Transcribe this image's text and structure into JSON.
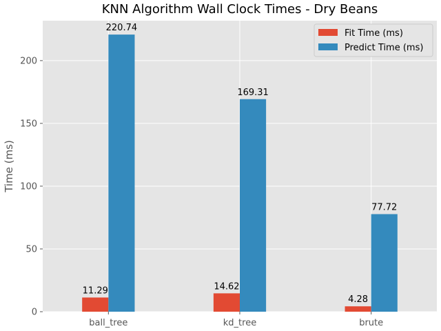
{
  "chart_data": {
    "type": "bar",
    "title": "KNN Algorithm Wall Clock Times - Dry Beans",
    "xlabel": "",
    "ylabel": "Time (ms)",
    "categories": [
      "ball_tree",
      "kd_tree",
      "brute"
    ],
    "series": [
      {
        "name": "Fit Time (ms)",
        "values": [
          11.29,
          14.62,
          4.28
        ],
        "labels": [
          "11.29",
          "14.62",
          "4.28"
        ],
        "color": "#E24A33"
      },
      {
        "name": "Predict Time (ms)",
        "values": [
          220.74,
          169.31,
          77.72
        ],
        "labels": [
          "220.74",
          "169.31",
          "77.72"
        ],
        "color": "#348ABD"
      }
    ],
    "ylim": [
      0,
      231.8
    ],
    "yticks": [
      0,
      50,
      100,
      150,
      200
    ],
    "ytick_labels": [
      "0",
      "50",
      "100",
      "150",
      "200"
    ],
    "grid": true,
    "legend_position": "top-right",
    "background": "#E5E5E5"
  }
}
